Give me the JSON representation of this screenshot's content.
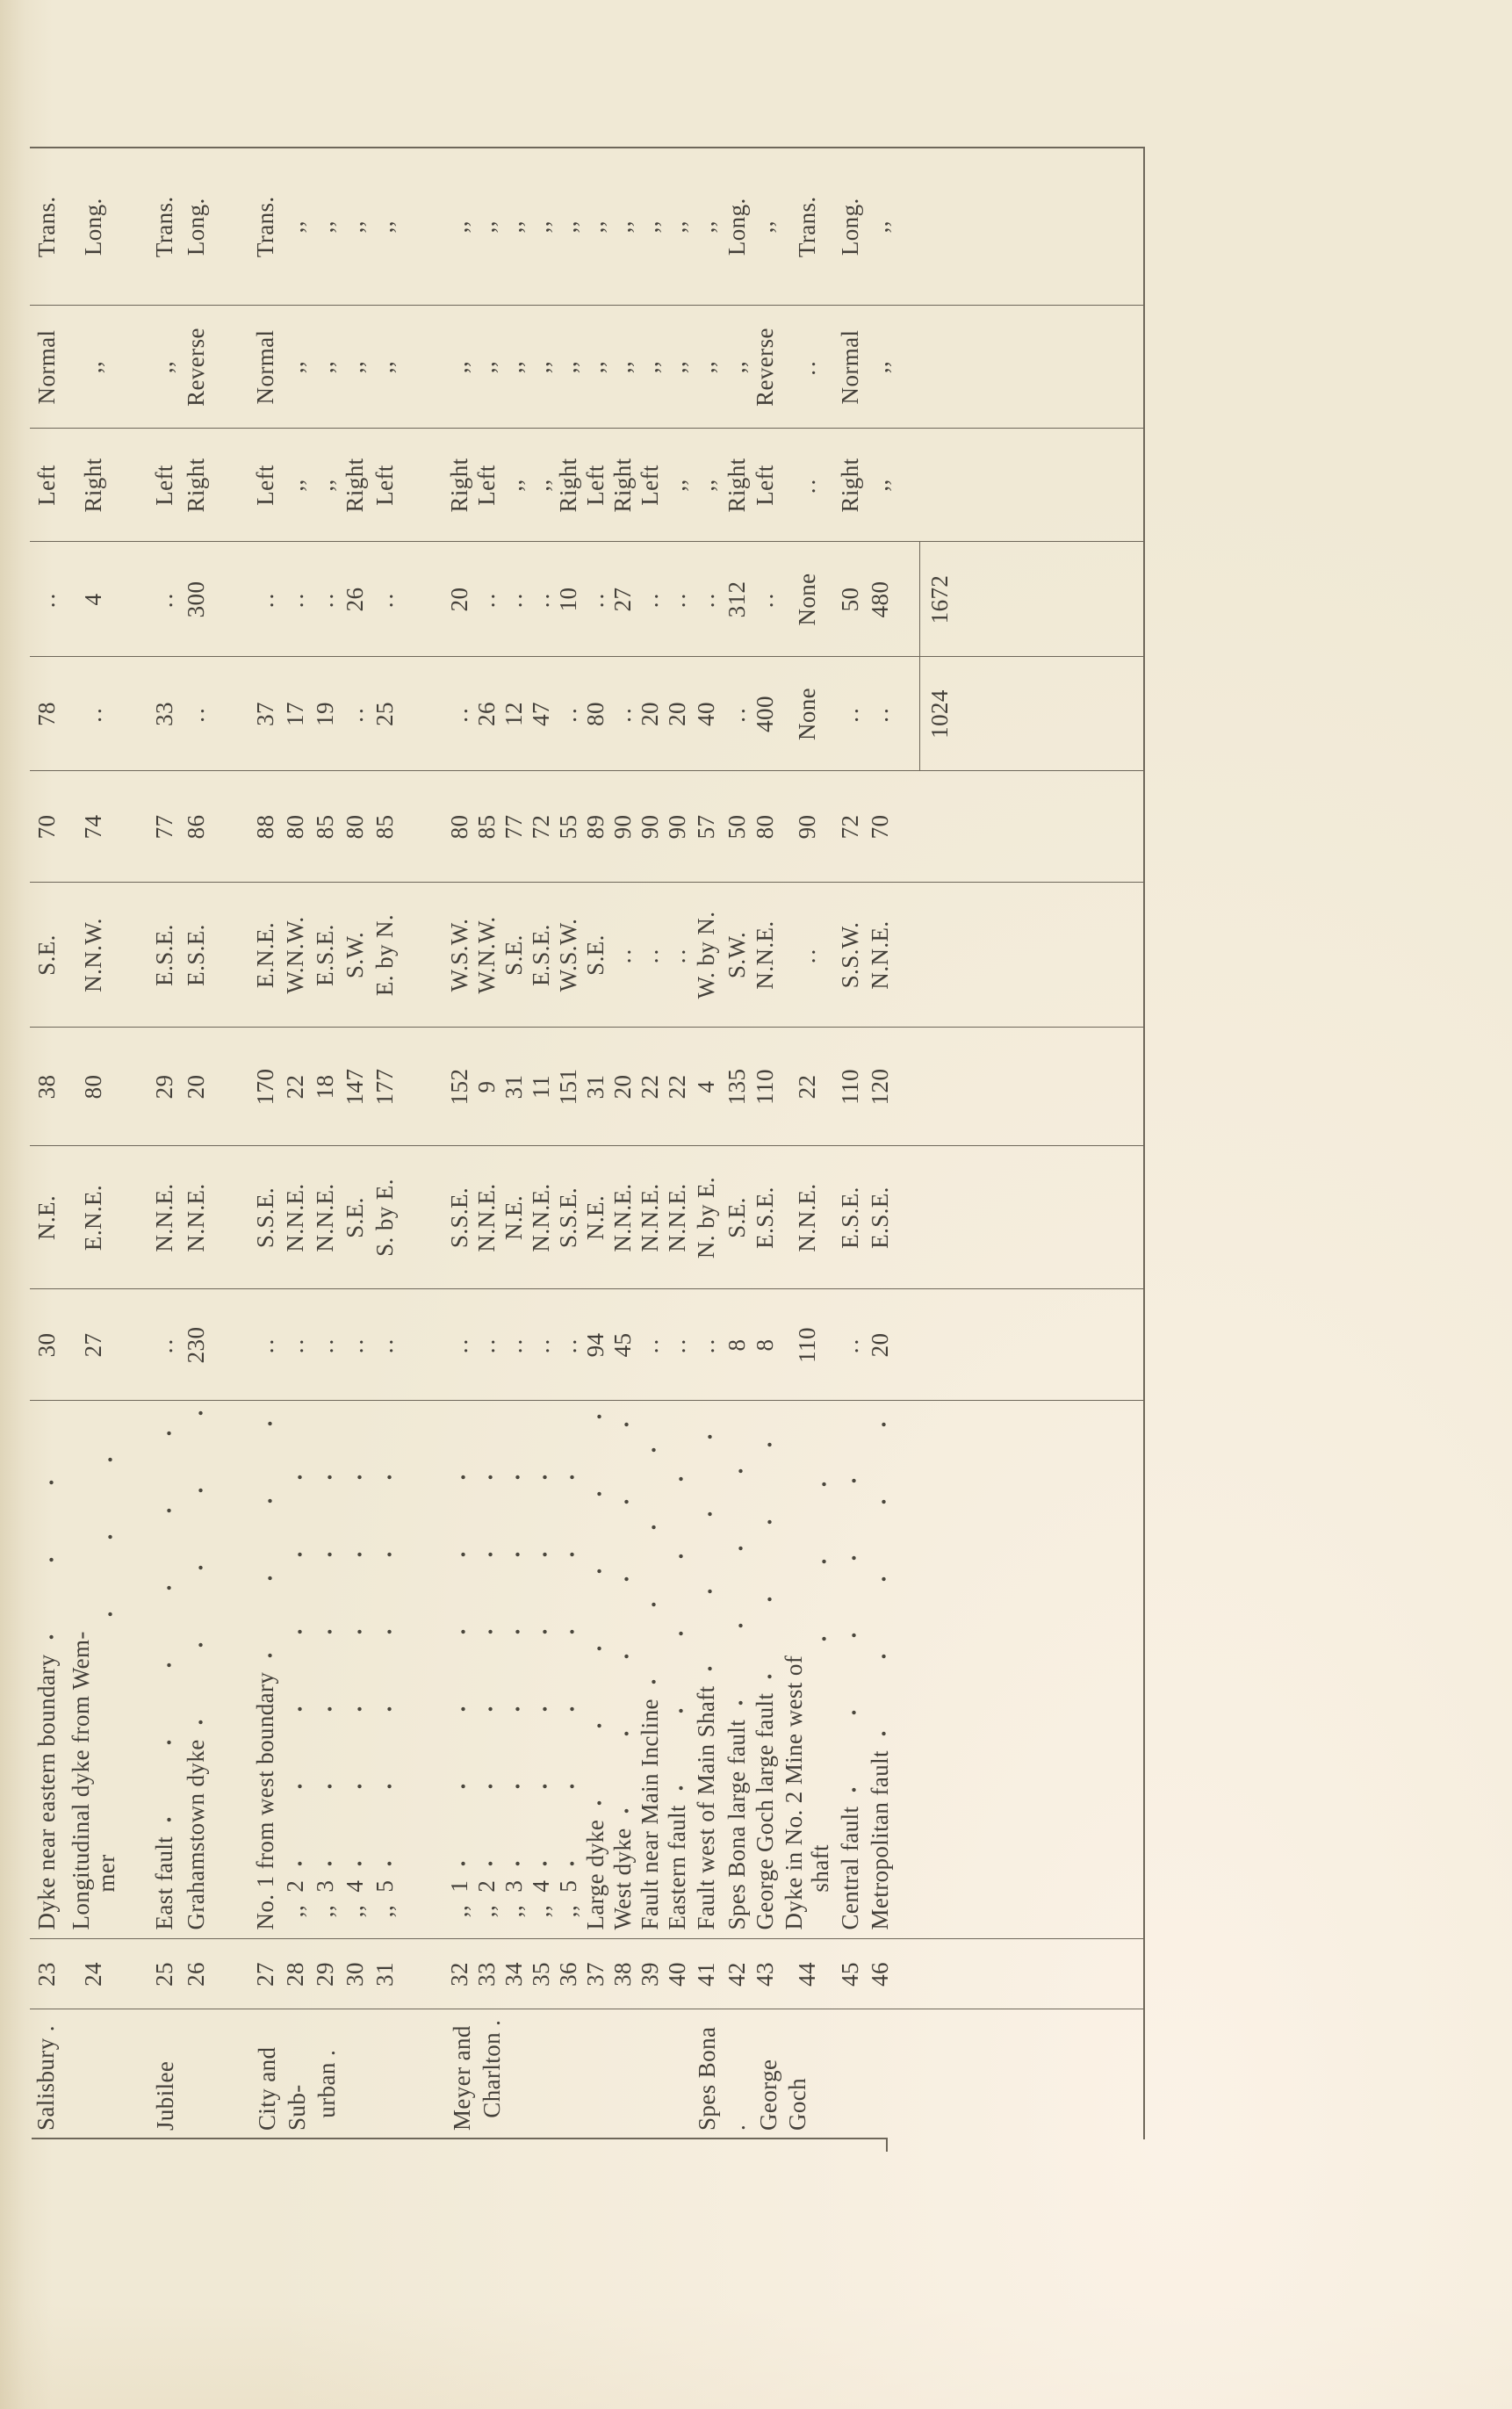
{
  "page": {
    "type": "scanned-book-table-rotated-90",
    "colors": {
      "paper": "#f0e9d5",
      "ink": "#44403a",
      "rule": "#6e675a"
    },
    "orientation_note": "table printed in landscape, page read by rotating 90 degrees clockwise"
  },
  "table": {
    "columns": [
      "mine",
      "no",
      "description",
      "width",
      "strike",
      "length",
      "dip_direction",
      "dip",
      "throw_b",
      "throw_a",
      "left_right",
      "normal_reverse",
      "trans_long"
    ],
    "groups": [
      {
        "mine": "Salisbury .",
        "rows": [
          {
            "no": "23",
            "desc": "Dyke near eastern boundary",
            "width": "30",
            "strike": "N.E.",
            "length": "38",
            "dipdir": "S.E.",
            "dip": "70",
            "throwb": "78",
            "throwa": "..",
            "lr": "Left",
            "nr": "Normal",
            "tl": "Trans."
          },
          {
            "no": "24",
            "desc": "Longitudinal dyke from Wem-\n      mer",
            "width": "27",
            "strike": "E.N.E.",
            "length": "80",
            "dipdir": "N.N.W.",
            "dip": "74",
            "throwb": "..",
            "throwa": "4",
            "lr": "Right",
            "nr": ",,",
            "tl": "Long."
          }
        ]
      },
      {
        "mine": "Jubilee",
        "rows": [
          {
            "no": "25",
            "desc": "East fault",
            "width": "..",
            "strike": "N.N.E.",
            "length": "29",
            "dipdir": "E.S.E.",
            "dip": "77",
            "throwb": "33",
            "throwa": "..",
            "lr": "Left",
            "nr": ",,",
            "tl": "Trans."
          },
          {
            "no": "26",
            "desc": "Grahamstown dyke",
            "width": "230",
            "strike": "N.N.E.",
            "length": "20",
            "dipdir": "E.S.E.",
            "dip": "86",
            "throwb": "..",
            "throwa": "300",
            "lr": "Right",
            "nr": "Reverse",
            "tl": "Long."
          }
        ]
      },
      {
        "mine": "City and Sub-\n  urban .",
        "rows": [
          {
            "no": "27",
            "desc": "No. 1 from west boundary",
            "width": "..",
            "strike": "S.S.E.",
            "length": "170",
            "dipdir": "E.N.E.",
            "dip": "88",
            "throwb": "37",
            "throwa": "..",
            "lr": "Left",
            "nr": "Normal",
            "tl": "Trans."
          },
          {
            "no": "28",
            "desc": "  ,,  2",
            "width": "..",
            "strike": "N.N.E.",
            "length": "22",
            "dipdir": "W.N.W.",
            "dip": "80",
            "throwb": "17",
            "throwa": "..",
            "lr": ",,",
            "nr": ",,",
            "tl": ",,"
          },
          {
            "no": "29",
            "desc": "  ,,  3",
            "width": "..",
            "strike": "N.N.E.",
            "length": "18",
            "dipdir": "E.S.E.",
            "dip": "85",
            "throwb": "19",
            "throwa": "..",
            "lr": ",,",
            "nr": ",,",
            "tl": ",,"
          },
          {
            "no": "30",
            "desc": "  ,,  4",
            "width": "..",
            "strike": "S.E.",
            "length": "147",
            "dipdir": "S.W.",
            "dip": "80",
            "throwb": "..",
            "throwa": "26",
            "lr": "Right",
            "nr": ",,",
            "tl": ",,"
          },
          {
            "no": "31",
            "desc": "  ,,  5",
            "width": "..",
            "strike": "S. by E.",
            "length": "177",
            "dipdir": "E. by N.",
            "dip": "85",
            "throwb": "25",
            "throwa": "..",
            "lr": "Left",
            "nr": ",,",
            "tl": ",,"
          }
        ]
      },
      {
        "mine": "Meyer and\n  Charlton .",
        "rows": [
          {
            "no": "32",
            "desc": "  ,,  1",
            "width": "..",
            "strike": "S.S.E.",
            "length": "152",
            "dipdir": "W.S.W.",
            "dip": "80",
            "throwb": "..",
            "throwa": "20",
            "lr": "Right",
            "nr": ",,",
            "tl": ",,"
          },
          {
            "no": "33",
            "desc": "  ,,  2",
            "width": "..",
            "strike": "N.N.E.",
            "length": "9",
            "dipdir": "W.N.W.",
            "dip": "85",
            "throwb": "26",
            "throwa": "..",
            "lr": "Left",
            "nr": ",,",
            "tl": ",,"
          },
          {
            "no": "34",
            "desc": "  ,,  3",
            "width": "..",
            "strike": "N.E.",
            "length": "31",
            "dipdir": "S.E.",
            "dip": "77",
            "throwb": "12",
            "throwa": "..",
            "lr": ",,",
            "nr": ",,",
            "tl": ",,"
          },
          {
            "no": "35",
            "desc": "  ,,  4",
            "width": "..",
            "strike": "N.N.E.",
            "length": "11",
            "dipdir": "E.S.E.",
            "dip": "72",
            "throwb": "47",
            "throwa": "..",
            "lr": ",,",
            "nr": ",,",
            "tl": ",,"
          },
          {
            "no": "36",
            "desc": "  ,,  5",
            "width": "..",
            "strike": "S.S.E.",
            "length": "151",
            "dipdir": "W.S.W.",
            "dip": "55",
            "throwb": "..",
            "throwa": "10",
            "lr": "Right",
            "nr": ",,",
            "tl": ",,"
          },
          {
            "no": "37",
            "desc": "Large dyke",
            "width": "94",
            "strike": "N.E.",
            "length": "31",
            "dipdir": "S.E.",
            "dip": "89",
            "throwb": "80",
            "throwa": "..",
            "lr": "Left",
            "nr": ",,",
            "tl": ",,"
          },
          {
            "no": "38",
            "desc": "West dyke",
            "width": "45",
            "strike": "N.N.E.",
            "length": "20",
            "dipdir": "..",
            "dip": "90",
            "throwb": "..",
            "throwa": "27",
            "lr": "Right",
            "nr": ",,",
            "tl": ",,"
          },
          {
            "no": "39",
            "desc": "Fault near Main Incline",
            "width": "..",
            "strike": "N.N.E.",
            "length": "22",
            "dipdir": "..",
            "dip": "90",
            "throwb": "20",
            "throwa": "..",
            "lr": "Left",
            "nr": ",,",
            "tl": ",,"
          },
          {
            "no": "40",
            "desc": "Eastern fault",
            "width": "..",
            "strike": "N.N.E.",
            "length": "22",
            "dipdir": "..",
            "dip": "90",
            "throwb": "20",
            "throwa": "..",
            "lr": ",,",
            "nr": ",,",
            "tl": ",,"
          }
        ]
      },
      {
        "mine": "Spes Bona .",
        "rows": [
          {
            "no": "41",
            "desc": "Fault west of Main Shaft",
            "width": "..",
            "strike": "N. by E.",
            "length": "4",
            "dipdir": "W. by N.",
            "dip": "57",
            "throwb": "40",
            "throwa": "..",
            "lr": ",,",
            "nr": ",,",
            "tl": ",,"
          },
          {
            "no": "42",
            "desc": "Spes Bona large fault",
            "width": "8",
            "strike": "S.E.",
            "length": "135",
            "dipdir": "S.W.",
            "dip": "50",
            "throwb": "..",
            "throwa": "312",
            "lr": "Right",
            "nr": ",,",
            "tl": "Long."
          }
        ]
      },
      {
        "mine": "George Goch",
        "rows": [
          {
            "no": "43",
            "desc": "George Goch large fault",
            "width": "8",
            "strike": "E.S.E.",
            "length": "110",
            "dipdir": "N.N.E.",
            "dip": "80",
            "throwb": "400",
            "throwa": "..",
            "lr": "Left",
            "nr": "Reverse",
            "tl": ",,"
          },
          {
            "no": "44",
            "desc": "Dyke in No. 2 Mine west of\n      shaft",
            "width": "110",
            "strike": "N.N.E.",
            "length": "22",
            "dipdir": "..",
            "dip": "90",
            "throwb": "None",
            "throwa": "None",
            "lr": "..",
            "nr": "..",
            "tl": "Trans."
          },
          {
            "no": "45",
            "desc": "Central fault",
            "width": "..",
            "strike": "E.S.E.",
            "length": "110",
            "dipdir": "S.S.W.",
            "dip": "72",
            "throwb": "..",
            "throwa": "50",
            "lr": "Right",
            "nr": "Normal",
            "tl": "Long."
          },
          {
            "no": "46",
            "desc": "Metropolitan fault",
            "width": "20",
            "strike": "E.S.E.",
            "length": "120",
            "dipdir": "N.N.E.",
            "dip": "70",
            "throwb": "..",
            "throwa": "480",
            "lr": ",,",
            "nr": ",,",
            "tl": ",,"
          }
        ]
      }
    ],
    "totals": {
      "throw_b": "1024",
      "throw_a": "1672"
    }
  }
}
